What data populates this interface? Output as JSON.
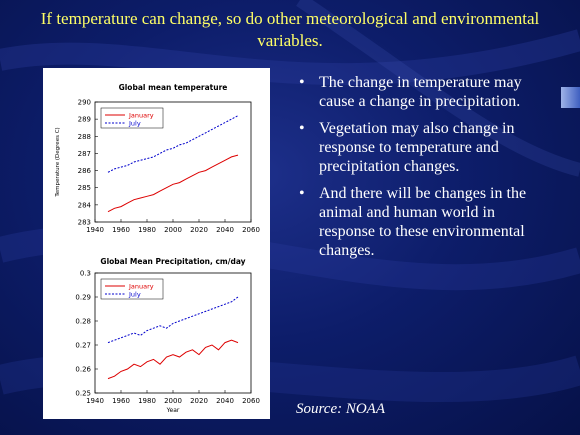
{
  "slide": {
    "title": "If temperature can change, so do other meteorological and environmental variables.",
    "bullets": [
      "The change in temperature may cause a change in precipitation.",
      "Vegetation may also change in response to temperature and precipitation changes.",
      "And there will be changes in the animal and human world in response to these environmental changes."
    ],
    "source": "Source: NOAA",
    "colors": {
      "title": "#ffff66",
      "background": "#0d1d6a",
      "text": "#ffffff"
    }
  },
  "chart_data": [
    {
      "type": "line",
      "title": "Global mean temperature",
      "ylabel": "Temperature (Degrees C)",
      "xlabel": "",
      "xlim": [
        1940,
        2060
      ],
      "ylim": [
        283,
        290
      ],
      "xticks": [
        1940,
        1960,
        1980,
        2000,
        2020,
        2040,
        2060
      ],
      "yticks": [
        283,
        284,
        285,
        286,
        287,
        288,
        289,
        290
      ],
      "legend_position": "top-left",
      "x": [
        1950,
        1955,
        1960,
        1965,
        1970,
        1975,
        1980,
        1985,
        1990,
        1995,
        2000,
        2005,
        2010,
        2015,
        2020,
        2025,
        2030,
        2035,
        2040,
        2045,
        2050
      ],
      "series": [
        {
          "name": "January",
          "color": "#dd0000",
          "style": "solid",
          "values": [
            283.6,
            283.8,
            283.9,
            284.1,
            284.3,
            284.4,
            284.5,
            284.6,
            284.8,
            285.0,
            285.2,
            285.3,
            285.5,
            285.7,
            285.9,
            286.0,
            286.2,
            286.4,
            286.6,
            286.8,
            286.9
          ]
        },
        {
          "name": "July",
          "color": "#0000cc",
          "style": "dashed",
          "values": [
            285.9,
            286.1,
            286.2,
            286.3,
            286.5,
            286.6,
            286.7,
            286.8,
            287.0,
            287.2,
            287.3,
            287.5,
            287.6,
            287.8,
            288.0,
            288.2,
            288.4,
            288.6,
            288.8,
            289.0,
            289.2
          ]
        }
      ]
    },
    {
      "type": "line",
      "title": "Global Mean Precipitation, cm/day",
      "ylabel": "",
      "xlabel": "Year",
      "xlim": [
        1940,
        2060
      ],
      "ylim": [
        0.25,
        0.3
      ],
      "xticks": [
        1940,
        1960,
        1980,
        2000,
        2020,
        2040,
        2060
      ],
      "yticks": [
        0.25,
        0.26,
        0.27,
        0.28,
        0.29,
        0.3
      ],
      "legend_position": "top-left",
      "x": [
        1950,
        1955,
        1960,
        1965,
        1970,
        1975,
        1980,
        1985,
        1990,
        1995,
        2000,
        2005,
        2010,
        2015,
        2020,
        2025,
        2030,
        2035,
        2040,
        2045,
        2050
      ],
      "series": [
        {
          "name": "January",
          "color": "#dd0000",
          "style": "solid",
          "values": [
            0.256,
            0.257,
            0.259,
            0.26,
            0.262,
            0.261,
            0.263,
            0.264,
            0.262,
            0.265,
            0.266,
            0.265,
            0.267,
            0.268,
            0.266,
            0.269,
            0.27,
            0.268,
            0.271,
            0.272,
            0.271
          ]
        },
        {
          "name": "July",
          "color": "#0000cc",
          "style": "dashed",
          "values": [
            0.271,
            0.272,
            0.273,
            0.274,
            0.275,
            0.274,
            0.276,
            0.277,
            0.278,
            0.277,
            0.279,
            0.28,
            0.281,
            0.282,
            0.283,
            0.284,
            0.285,
            0.286,
            0.287,
            0.288,
            0.29
          ]
        }
      ]
    }
  ]
}
